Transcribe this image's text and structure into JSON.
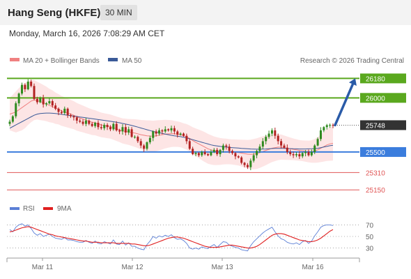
{
  "header": {
    "title": "Hang Seng (HKFE)",
    "interval": "30 MIN"
  },
  "datetime": "Monday, March 16, 2026 7:08:29 AM CET",
  "legend": {
    "ma20": "MA 20 + Bollinger Bands",
    "ma50": "MA 50",
    "rsi": "RSI",
    "rsi_ma": "9MA"
  },
  "credit": "Research © 2026 Trading Central",
  "colors": {
    "ma20": "#f08080",
    "ma50": "#3a5a98",
    "bollinger_fill": "#fde0e0",
    "resistance": "#5aa81e",
    "support_strong": "#3b7ddd",
    "support_weak": "#e05555",
    "candle_up": "#2f8a1f",
    "candle_down": "#b22222",
    "last_price": "#333333",
    "arrow": "#2a5ba8",
    "rsi": "#5b7fd6",
    "rsi_ma": "#e02020"
  },
  "chart_data": [
    {
      "type": "candlestick",
      "x_labels": [
        "Mar 11",
        "Mar 12",
        "Mar 13",
        "Mar 16"
      ],
      "ylim": [
        25100,
        26260
      ],
      "last_price": 25748,
      "levels": [
        {
          "value": 26180,
          "label": "26180",
          "kind": "resistance",
          "highlight": true
        },
        {
          "value": 26000,
          "label": "26000",
          "kind": "resistance",
          "highlight": true
        },
        {
          "value": 25500,
          "label": "25500",
          "kind": "support_strong",
          "highlight": true
        },
        {
          "value": 25310,
          "label": "25310",
          "kind": "support_weak",
          "highlight": false
        },
        {
          "value": 25150,
          "label": "25150",
          "kind": "support_weak",
          "highlight": false
        }
      ],
      "forecast_arrow": {
        "from": 25748,
        "to": 26180
      },
      "close_series": [
        25780,
        25830,
        25950,
        26040,
        26120,
        26080,
        26150,
        26110,
        25990,
        25960,
        26000,
        25940,
        25950,
        25970,
        25930,
        25900,
        25870,
        25860,
        25900,
        25840,
        25830,
        25820,
        25790,
        25780,
        25760,
        25790,
        25760,
        25740,
        25770,
        25730,
        25720,
        25750,
        25730,
        25710,
        25760,
        25700,
        25690,
        25730,
        25680,
        25710,
        25640,
        25640,
        25600,
        25560,
        25530,
        25590,
        25630,
        25690,
        25670,
        25700,
        25690,
        25710,
        25700,
        25720,
        25690,
        25660,
        25670,
        25650,
        25600,
        25530,
        25480,
        25490,
        25470,
        25500,
        25480,
        25470,
        25500,
        25520,
        25480,
        25520,
        25560,
        25550,
        25510,
        25490,
        25460,
        25450,
        25400,
        25380,
        25360,
        25420,
        25470,
        25510,
        25550,
        25600,
        25640,
        25670,
        25700,
        25650,
        25600,
        25560,
        25540,
        25500,
        25480,
        25470,
        25480,
        25460,
        25490,
        25500,
        25470,
        25500,
        25560,
        25620,
        25700,
        25730,
        25748,
        25750,
        25748
      ],
      "ma20_series": [
        25850,
        25860,
        25870,
        25890,
        25910,
        25930,
        25950,
        25970,
        25980,
        25975,
        25965,
        25955,
        25945,
        25930,
        25920,
        25905,
        25895,
        25880,
        25870,
        25860,
        25850,
        25840,
        25825,
        25815,
        25805,
        25795,
        25785,
        25775,
        25770,
        25760,
        25750,
        25745,
        25740,
        25735,
        25725,
        25715,
        25705,
        25695,
        25690,
        25685,
        25680,
        25675,
        25668,
        25660,
        25655,
        25650,
        25648,
        25645,
        25650,
        25655,
        25660,
        25665,
        25668,
        25670,
        25668,
        25665,
        25660,
        25650,
        25640,
        25625,
        25605,
        25590,
        25575,
        25560,
        25545,
        25530,
        25520,
        25512,
        25508,
        25505,
        25505,
        25505,
        25503,
        25500,
        25498,
        25495,
        25490,
        25485,
        25480,
        25478,
        25480,
        25485,
        25495,
        25505,
        25515,
        25525,
        25535,
        25540,
        25545,
        25545,
        25540,
        25535,
        25530,
        25525,
        25520,
        25515,
        25512,
        25508,
        25505,
        25505,
        25510,
        25520,
        25535,
        25550,
        25565,
        25575,
        25580
      ],
      "ma50_series": [
        25720,
        25735,
        25750,
        25765,
        25780,
        25795,
        25810,
        25825,
        25840,
        25850,
        25855,
        25858,
        25860,
        25860,
        25858,
        25855,
        25852,
        25848,
        25844,
        25840,
        25836,
        25832,
        25828,
        25824,
        25820,
        25816,
        25812,
        25808,
        25804,
        25800,
        25796,
        25792,
        25788,
        25784,
        25780,
        25775,
        25770,
        25764,
        25758,
        25752,
        25745,
        25738,
        25730,
        25722,
        25714,
        25706,
        25698,
        25690,
        25684,
        25678,
        25672,
        25666,
        25660,
        25654,
        25650,
        25646,
        25642,
        25636,
        25630,
        25622,
        25614,
        25606,
        25598,
        25590,
        25582,
        25574,
        25566,
        25560,
        25556,
        25552,
        25548,
        25545,
        25542,
        25540,
        25538,
        25536,
        25534,
        25532,
        25530,
        25528,
        25527,
        25526,
        25526,
        25527,
        25528,
        25530,
        25532,
        25533,
        25534,
        25534,
        25533,
        25532,
        25531,
        25530,
        25529,
        25528,
        25528,
        25528,
        25529,
        25530,
        25532,
        25535,
        25540,
        25546,
        25552,
        25558,
        25562
      ],
      "bb_width_series": [
        150,
        170,
        190,
        200,
        210,
        210,
        200,
        195,
        185,
        175,
        170,
        165,
        160,
        155,
        150,
        145,
        140,
        138,
        136,
        134,
        132,
        130,
        128,
        126,
        124,
        122,
        120,
        118,
        116,
        115,
        114,
        113,
        112,
        112,
        112,
        113,
        114,
        116,
        118,
        120,
        124,
        128,
        132,
        136,
        140,
        142,
        144,
        144,
        142,
        140,
        136,
        132,
        128,
        124,
        120,
        118,
        116,
        116,
        118,
        120,
        124,
        128,
        132,
        136,
        138,
        138,
        136,
        132,
        128,
        124,
        120,
        118,
        116,
        116,
        118,
        120,
        124,
        128,
        132,
        136,
        140,
        142,
        142,
        140,
        136,
        132,
        128,
        124,
        120,
        116,
        112,
        108,
        104,
        100,
        98,
        96,
        96,
        98,
        100,
        104,
        110,
        118,
        128,
        138,
        148,
        156,
        160
      ]
    },
    {
      "type": "line",
      "name": "RSI",
      "y_ticks": [
        70,
        50,
        30
      ],
      "ylim": [
        15,
        85
      ],
      "rsi_series": [
        62,
        58,
        66,
        70,
        72,
        68,
        70,
        64,
        56,
        52,
        55,
        50,
        52,
        54,
        50,
        47,
        46,
        45,
        48,
        44,
        44,
        43,
        41,
        40,
        40,
        43,
        40,
        38,
        42,
        38,
        37,
        41,
        39,
        37,
        44,
        37,
        36,
        42,
        35,
        39,
        33,
        33,
        30,
        28,
        27,
        36,
        42,
        50,
        47,
        51,
        49,
        52,
        50,
        53,
        48,
        45,
        46,
        43,
        38,
        30,
        28,
        30,
        28,
        32,
        30,
        29,
        33,
        36,
        31,
        36,
        41,
        40,
        35,
        33,
        31,
        30,
        27,
        26,
        25,
        34,
        41,
        46,
        51,
        56,
        60,
        63,
        66,
        58,
        51,
        46,
        44,
        40,
        38,
        37,
        39,
        36,
        41,
        43,
        38,
        42,
        51,
        58,
        66,
        69,
        70,
        70,
        69
      ],
      "rsi_ma_series": [
        58,
        59,
        61,
        63,
        65,
        66,
        67,
        66,
        64,
        62,
        60,
        58,
        56,
        54,
        53,
        51,
        50,
        49,
        48,
        47,
        46,
        45,
        44,
        43,
        42,
        42,
        41,
        40,
        40,
        40,
        39,
        39,
        39,
        39,
        39,
        38,
        38,
        38,
        38,
        38,
        37,
        37,
        36,
        35,
        34,
        34,
        35,
        37,
        39,
        41,
        43,
        45,
        47,
        48,
        49,
        49,
        48,
        47,
        45,
        43,
        41,
        39,
        37,
        35,
        33,
        32,
        31,
        31,
        31,
        32,
        33,
        34,
        35,
        35,
        34,
        33,
        32,
        31,
        30,
        30,
        31,
        33,
        36,
        40,
        44,
        48,
        52,
        54,
        55,
        55,
        54,
        52,
        50,
        48,
        46,
        44,
        43,
        42,
        41,
        41,
        42,
        44,
        47,
        51,
        55,
        59,
        62
      ]
    }
  ]
}
